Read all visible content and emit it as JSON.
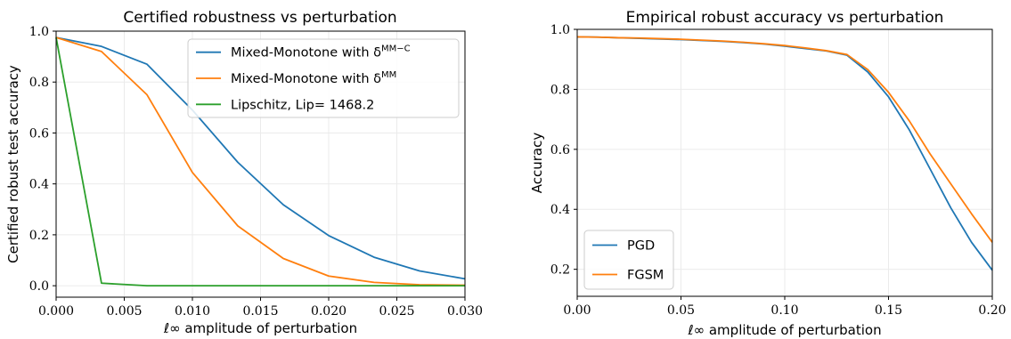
{
  "chart_data": [
    {
      "type": "line",
      "title": "Certified robustness vs perturbation",
      "xlabel": "ℓ∞ amplitude of perturbation",
      "ylabel": "Certified robust test accuracy",
      "xlim": [
        0.0,
        0.03
      ],
      "ylim": [
        -0.045,
        1.0
      ],
      "x_ticks": [
        0.0,
        0.005,
        0.01,
        0.015,
        0.02,
        0.025,
        0.03
      ],
      "x_tick_labels": [
        "0.000",
        "0.005",
        "0.010",
        "0.015",
        "0.020",
        "0.025",
        "0.030"
      ],
      "y_ticks": [
        0.0,
        0.2,
        0.4,
        0.6,
        0.8,
        1.0
      ],
      "y_tick_labels": [
        "0.0",
        "0.2",
        "0.4",
        "0.6",
        "0.8",
        "1.0"
      ],
      "grid": true,
      "legend_position": "top-right",
      "x": [
        0.0,
        0.00333,
        0.00667,
        0.01,
        0.01333,
        0.01667,
        0.02,
        0.02333,
        0.02667,
        0.03
      ],
      "series": [
        {
          "name": "Mixed-Monotone with δ^{MM−C}",
          "label_main": "Mixed-Monotone with δ",
          "label_sup": "MM−C",
          "color": "#1f77b4",
          "values": [
            0.975,
            0.94,
            0.87,
            0.69,
            0.485,
            0.318,
            0.197,
            0.112,
            0.058,
            0.027
          ]
        },
        {
          "name": "Mixed-Monotone with δ^{MM}",
          "label_main": "Mixed-Monotone with δ",
          "label_sup": "MM",
          "color": "#ff7f0e",
          "values": [
            0.975,
            0.92,
            0.75,
            0.445,
            0.235,
            0.107,
            0.038,
            0.013,
            0.004,
            0.002
          ]
        },
        {
          "name": "Lipschitz, Lip= 1468.2",
          "label_main": "Lipschitz, Lip= 1468.2",
          "label_sup": "",
          "color": "#2ca02c",
          "values": [
            0.975,
            0.01,
            0.0,
            0.0,
            0.0,
            0.0,
            0.0,
            0.0,
            0.0,
            0.0
          ]
        }
      ]
    },
    {
      "type": "line",
      "title": "Empirical robust accuracy vs perturbation",
      "xlabel": "ℓ∞ amplitude of perturbation",
      "ylabel": "Accuracy",
      "xlim": [
        0.0,
        0.2
      ],
      "ylim": [
        0.11,
        1.0
      ],
      "x_ticks": [
        0.0,
        0.05,
        0.1,
        0.15,
        0.2
      ],
      "x_tick_labels": [
        "0.00",
        "0.05",
        "0.10",
        "0.15",
        "0.20"
      ],
      "y_ticks": [
        0.2,
        0.4,
        0.6,
        0.8,
        1.0
      ],
      "y_tick_labels": [
        "0.2",
        "0.4",
        "0.6",
        "0.8",
        "1.0"
      ],
      "grid": true,
      "legend_position": "lower-left",
      "x": [
        0.0,
        0.01,
        0.02,
        0.03,
        0.04,
        0.05,
        0.06,
        0.07,
        0.08,
        0.09,
        0.1,
        0.11,
        0.12,
        0.13,
        0.14,
        0.15,
        0.16,
        0.17,
        0.18,
        0.19,
        0.2
      ],
      "series": [
        {
          "name": "PGD",
          "label_main": "PGD",
          "label_sup": "",
          "color": "#1f77b4",
          "values": [
            0.975,
            0.974,
            0.972,
            0.97,
            0.968,
            0.966,
            0.963,
            0.96,
            0.956,
            0.951,
            0.944,
            0.936,
            0.928,
            0.914,
            0.858,
            0.775,
            0.665,
            0.535,
            0.405,
            0.29,
            0.197
          ]
        },
        {
          "name": "FGSM",
          "label_main": "FGSM",
          "label_sup": "",
          "color": "#ff7f0e",
          "values": [
            0.975,
            0.974,
            0.972,
            0.971,
            0.969,
            0.967,
            0.964,
            0.961,
            0.957,
            0.952,
            0.946,
            0.938,
            0.929,
            0.916,
            0.866,
            0.79,
            0.695,
            0.585,
            0.485,
            0.385,
            0.29
          ]
        }
      ]
    }
  ]
}
